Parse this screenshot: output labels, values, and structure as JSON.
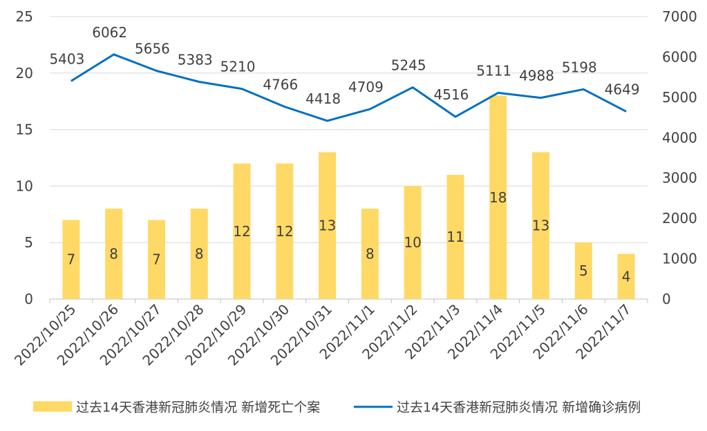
{
  "chart_data": {
    "type": "bar",
    "categories": [
      "2022/10/25",
      "2022/10/26",
      "2022/10/27",
      "2022/10/28",
      "2022/10/29",
      "2022/10/30",
      "2022/10/31",
      "2022/11/1",
      "2022/11/2",
      "2022/11/3",
      "2022/11/4",
      "2022/11/5",
      "2022/11/6",
      "2022/11/7"
    ],
    "series": [
      {
        "name": "过去14天香港新冠肺炎情况 新增死亡个案",
        "type": "bar",
        "axis": "left",
        "color": "#FFD966",
        "values": [
          7,
          8,
          7,
          8,
          12,
          12,
          13,
          8,
          10,
          11,
          18,
          13,
          5,
          4
        ]
      },
      {
        "name": "过去14天香港新冠肺炎情况 新增确诊病例",
        "type": "line",
        "axis": "right",
        "color": "#0070C0",
        "values": [
          5403,
          6062,
          5656,
          5383,
          5210,
          4766,
          4418,
          4709,
          5245,
          4516,
          5111,
          4988,
          5198,
          4649
        ]
      }
    ],
    "y_left": {
      "range": [
        0,
        25
      ],
      "ticks": [
        0,
        5,
        10,
        15,
        20,
        25
      ]
    },
    "y_right": {
      "range": [
        0,
        7000
      ],
      "ticks": [
        0,
        1000,
        2000,
        3000,
        4000,
        5000,
        6000,
        7000
      ]
    },
    "grid": true,
    "legend": "bottom",
    "title": "",
    "xlabel": "",
    "ylabel": ""
  }
}
